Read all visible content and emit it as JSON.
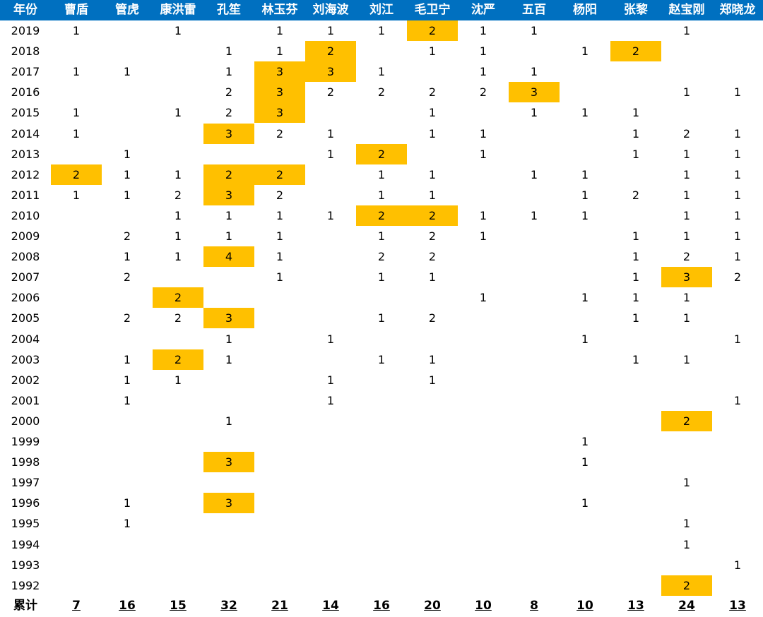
{
  "header": {
    "year_label": "年份",
    "names": [
      "曹盾",
      "管虎",
      "康洪雷",
      "孔笙",
      "林玉芬",
      "刘海波",
      "刘江",
      "毛卫宁",
      "沈严",
      "五百",
      "杨阳",
      "张黎",
      "赵宝刚",
      "郑晓龙"
    ]
  },
  "rows": [
    {
      "year": "2019",
      "vals": [
        "1",
        "",
        "1",
        "",
        "1",
        "1",
        "1",
        "2",
        "1",
        "1",
        "",
        "",
        "1",
        ""
      ],
      "hl": [
        7
      ]
    },
    {
      "year": "2018",
      "vals": [
        "",
        "",
        "",
        "1",
        "1",
        "2",
        "",
        "1",
        "1",
        "",
        "1",
        "2",
        "",
        ""
      ],
      "hl": [
        5,
        11
      ]
    },
    {
      "year": "2017",
      "vals": [
        "1",
        "1",
        "",
        "1",
        "3",
        "3",
        "1",
        "",
        "1",
        "1",
        "",
        "",
        "",
        ""
      ],
      "hl": [
        4,
        5
      ]
    },
    {
      "year": "2016",
      "vals": [
        "",
        "",
        "",
        "2",
        "3",
        "2",
        "2",
        "2",
        "2",
        "3",
        "",
        "",
        "1",
        "1"
      ],
      "hl": [
        4,
        9
      ]
    },
    {
      "year": "2015",
      "vals": [
        "1",
        "",
        "1",
        "2",
        "3",
        "",
        "",
        "1",
        "",
        "1",
        "1",
        "1",
        "",
        ""
      ],
      "hl": [
        4
      ]
    },
    {
      "year": "2014",
      "vals": [
        "1",
        "",
        "",
        "3",
        "2",
        "1",
        "",
        "1",
        "1",
        "",
        "",
        "1",
        "2",
        "1"
      ],
      "hl": [
        3
      ]
    },
    {
      "year": "2013",
      "vals": [
        "",
        "1",
        "",
        "",
        "",
        "1",
        "2",
        "",
        "1",
        "",
        "",
        "1",
        "1",
        "1"
      ],
      "hl": [
        6
      ]
    },
    {
      "year": "2012",
      "vals": [
        "2",
        "1",
        "1",
        "2",
        "2",
        "",
        "1",
        "1",
        "",
        "1",
        "1",
        "",
        "1",
        "1"
      ],
      "hl": [
        0,
        3,
        4
      ]
    },
    {
      "year": "2011",
      "vals": [
        "1",
        "1",
        "2",
        "3",
        "2",
        "",
        "1",
        "1",
        "",
        "",
        "1",
        "2",
        "1",
        "1"
      ],
      "hl": [
        3
      ]
    },
    {
      "year": "2010",
      "vals": [
        "",
        "",
        "1",
        "1",
        "1",
        "1",
        "2",
        "2",
        "1",
        "1",
        "1",
        "",
        "1",
        "1"
      ],
      "hl": [
        6,
        7
      ]
    },
    {
      "year": "2009",
      "vals": [
        "",
        "2",
        "1",
        "1",
        "1",
        "",
        "1",
        "2",
        "1",
        "",
        "",
        "1",
        "1",
        "1"
      ],
      "hl": []
    },
    {
      "year": "2008",
      "vals": [
        "",
        "1",
        "1",
        "4",
        "1",
        "",
        "2",
        "2",
        "",
        "",
        "",
        "1",
        "2",
        "1"
      ],
      "hl": [
        3
      ]
    },
    {
      "year": "2007",
      "vals": [
        "",
        "2",
        "",
        "",
        "1",
        "",
        "1",
        "1",
        "",
        "",
        "",
        "1",
        "3",
        "2"
      ],
      "hl": [
        12
      ]
    },
    {
      "year": "2006",
      "vals": [
        "",
        "",
        "2",
        "",
        "",
        "",
        "",
        "",
        "1",
        "",
        "1",
        "1",
        "1",
        ""
      ],
      "hl": [
        2
      ]
    },
    {
      "year": "2005",
      "vals": [
        "",
        "2",
        "2",
        "3",
        "",
        "",
        "1",
        "2",
        "",
        "",
        "",
        "1",
        "1",
        ""
      ],
      "hl": [
        3
      ]
    },
    {
      "year": "2004",
      "vals": [
        "",
        "",
        "",
        "1",
        "",
        "1",
        "",
        "",
        "",
        "",
        "1",
        "",
        "",
        "1"
      ],
      "hl": []
    },
    {
      "year": "2003",
      "vals": [
        "",
        "1",
        "2",
        "1",
        "",
        "",
        "1",
        "1",
        "",
        "",
        "",
        "1",
        "1",
        ""
      ],
      "hl": [
        2
      ]
    },
    {
      "year": "2002",
      "vals": [
        "",
        "1",
        "1",
        "",
        "",
        "1",
        "",
        "1",
        "",
        "",
        "",
        "",
        "",
        ""
      ],
      "hl": []
    },
    {
      "year": "2001",
      "vals": [
        "",
        "1",
        "",
        "",
        "",
        "1",
        "",
        "",
        "",
        "",
        "",
        "",
        "",
        "1"
      ],
      "hl": []
    },
    {
      "year": "2000",
      "vals": [
        "",
        "",
        "",
        "1",
        "",
        "",
        "",
        "",
        "",
        "",
        "",
        "",
        "2",
        ""
      ],
      "hl": [
        12
      ]
    },
    {
      "year": "1999",
      "vals": [
        "",
        "",
        "",
        "",
        "",
        "",
        "",
        "",
        "",
        "",
        "1",
        "",
        "",
        ""
      ],
      "hl": []
    },
    {
      "year": "1998",
      "vals": [
        "",
        "",
        "",
        "3",
        "",
        "",
        "",
        "",
        "",
        "",
        "1",
        "",
        "",
        ""
      ],
      "hl": [
        3
      ]
    },
    {
      "year": "1997",
      "vals": [
        "",
        "",
        "",
        "",
        "",
        "",
        "",
        "",
        "",
        "",
        "",
        "",
        "1",
        ""
      ],
      "hl": []
    },
    {
      "year": "1996",
      "vals": [
        "",
        "1",
        "",
        "3",
        "",
        "",
        "",
        "",
        "",
        "",
        "1",
        "",
        "",
        ""
      ],
      "hl": [
        3
      ]
    },
    {
      "year": "1995",
      "vals": [
        "",
        "1",
        "",
        "",
        "",
        "",
        "",
        "",
        "",
        "",
        "",
        "",
        "1",
        ""
      ],
      "hl": []
    },
    {
      "year": "1994",
      "vals": [
        "",
        "",
        "",
        "",
        "",
        "",
        "",
        "",
        "",
        "",
        "",
        "",
        "1",
        ""
      ],
      "hl": []
    },
    {
      "year": "1993",
      "vals": [
        "",
        "",
        "",
        "",
        "",
        "",
        "",
        "",
        "",
        "",
        "",
        "",
        "",
        "1"
      ],
      "hl": []
    },
    {
      "year": "1992",
      "vals": [
        "",
        "",
        "",
        "",
        "",
        "",
        "",
        "",
        "",
        "",
        "",
        "",
        "2",
        ""
      ],
      "hl": [
        12
      ]
    }
  ],
  "totals": {
    "label": "累计",
    "values": [
      "7",
      "16",
      "15",
      "32",
      "21",
      "14",
      "16",
      "20",
      "10",
      "8",
      "10",
      "13",
      "24",
      "13"
    ]
  },
  "colors": {
    "header_bg": "#0070c0",
    "header_text": "#ffffff",
    "highlight": "#ffc000"
  }
}
